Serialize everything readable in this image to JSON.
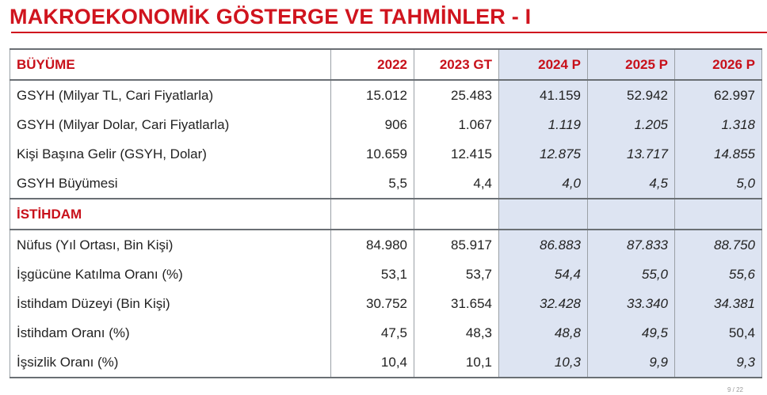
{
  "title": "MAKROEKONOMİK GÖSTERGE VE TAHMİNLER - I",
  "colors": {
    "accent": "#d0141e",
    "projection_fill": "#dde4f2"
  },
  "table": {
    "section1": "BÜYÜME",
    "years": [
      "2022",
      "2023 GT",
      "2024 P",
      "2025 P",
      "2026 P"
    ],
    "rows1": [
      {
        "label": "GSYH (Milyar TL, Cari Fiyatlarla)",
        "values": [
          "15.012",
          "25.483",
          "41.159",
          "52.942",
          "62.997"
        ]
      },
      {
        "label": "GSYH (Milyar Dolar, Cari Fiyatlarla)",
        "values": [
          "906",
          "1.067",
          "1.119",
          "1.205",
          "1.318"
        ]
      },
      {
        "label": "Kişi Başına Gelir (GSYH, Dolar)",
        "values": [
          "10.659",
          "12.415",
          "12.875",
          "13.717",
          "14.855"
        ]
      },
      {
        "label": "GSYH Büyümesi",
        "values": [
          "5,5",
          "4,4",
          "4,0",
          "4,5",
          "5,0"
        ]
      }
    ],
    "section2": "İSTİHDAM",
    "rows2": [
      {
        "label": "Nüfus (Yıl Ortası, Bin Kişi)",
        "values": [
          "84.980",
          "85.917",
          "86.883",
          "87.833",
          "88.750"
        ]
      },
      {
        "label": "İşgücüne Katılma Oranı (%)",
        "values": [
          "53,1",
          "53,7",
          "54,4",
          "55,0",
          "55,6"
        ]
      },
      {
        "label": "İstihdam Düzeyi (Bin Kişi)",
        "values": [
          "30.752",
          "31.654",
          "32.428",
          "33.340",
          "34.381"
        ]
      },
      {
        "label": "İstihdam Oranı (%)",
        "values": [
          "47,5",
          "48,3",
          "48,8",
          "49,5",
          "50,4"
        ]
      },
      {
        "label": "İşsizlik Oranı (%)",
        "values": [
          "10,4",
          "10,1",
          "10,3",
          "9,9",
          "9,3"
        ]
      }
    ]
  },
  "page_number": "9 / 22"
}
